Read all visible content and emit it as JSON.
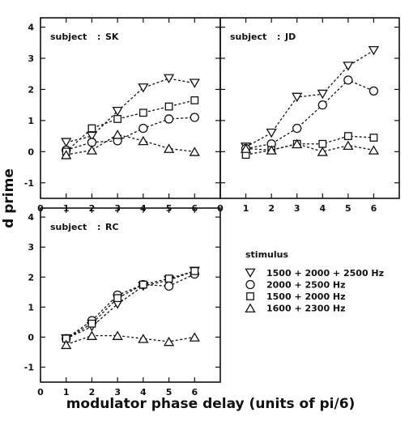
{
  "chart_data": {
    "type": "line",
    "xlabel": "modulator phase delay (units of pi/6)",
    "ylabel": "d prime",
    "xlim": [
      0,
      7
    ],
    "ylim": [
      -1.5,
      4.3
    ],
    "x_ticks": [
      0,
      1,
      2,
      3,
      4,
      5,
      6
    ],
    "y_ticks": [
      -1,
      0,
      1,
      2,
      3,
      4
    ],
    "legend": {
      "title": "stimulus",
      "placement": "bottom-right",
      "entries": [
        {
          "marker": "triangle-down",
          "label": "1500 + 2000 + 2500 Hz"
        },
        {
          "marker": "circle",
          "label": "2000 + 2500 Hz"
        },
        {
          "marker": "square",
          "label": "1500 + 2000 Hz"
        },
        {
          "marker": "triangle-up",
          "label": "1600 + 2300 Hz"
        }
      ]
    },
    "panels": [
      {
        "subject_label": "subject",
        "subject_sep": ":",
        "subject": "SK",
        "x": [
          1,
          2,
          3,
          4,
          5,
          6
        ],
        "series": [
          {
            "marker": "triangle-down",
            "values": [
              0.3,
              0.5,
              1.3,
              2.05,
              2.35,
              2.2
            ]
          },
          {
            "marker": "circle",
            "values": [
              0.05,
              0.3,
              0.35,
              0.75,
              1.05,
              1.1
            ]
          },
          {
            "marker": "square",
            "values": [
              0.0,
              0.75,
              1.05,
              1.25,
              1.45,
              1.65
            ]
          },
          {
            "marker": "triangle-up",
            "values": [
              -0.1,
              0.05,
              0.55,
              0.35,
              0.1,
              0.0
            ]
          }
        ]
      },
      {
        "subject_label": "subject",
        "subject_sep": ":",
        "subject": "JD",
        "x": [
          1,
          2,
          3,
          4,
          5,
          6
        ],
        "series": [
          {
            "marker": "triangle-down",
            "values": [
              0.15,
              0.6,
              1.75,
              1.85,
              2.75,
              3.25
            ]
          },
          {
            "marker": "circle",
            "values": [
              0.1,
              0.25,
              0.75,
              1.5,
              2.3,
              1.95
            ]
          },
          {
            "marker": "square",
            "values": [
              -0.1,
              0.05,
              0.25,
              0.25,
              0.5,
              0.45
            ]
          },
          {
            "marker": "triangle-up",
            "values": [
              0.1,
              0.05,
              0.25,
              0.0,
              0.2,
              0.05
            ]
          }
        ]
      },
      {
        "subject_label": "subject",
        "subject_sep": ":",
        "subject": "RC",
        "x": [
          1,
          2,
          3,
          4,
          5,
          6
        ],
        "series": [
          {
            "marker": "triangle-down",
            "values": [
              -0.05,
              0.35,
              1.1,
              1.7,
              1.9,
              2.2
            ]
          },
          {
            "marker": "circle",
            "values": [
              -0.05,
              0.55,
              1.4,
              1.75,
              1.7,
              2.1
            ]
          },
          {
            "marker": "square",
            "values": [
              -0.05,
              0.45,
              1.3,
              1.75,
              1.95,
              2.2
            ]
          },
          {
            "marker": "triangle-up",
            "values": [
              -0.25,
              0.05,
              0.05,
              -0.05,
              -0.15,
              0.0
            ]
          }
        ]
      }
    ]
  }
}
